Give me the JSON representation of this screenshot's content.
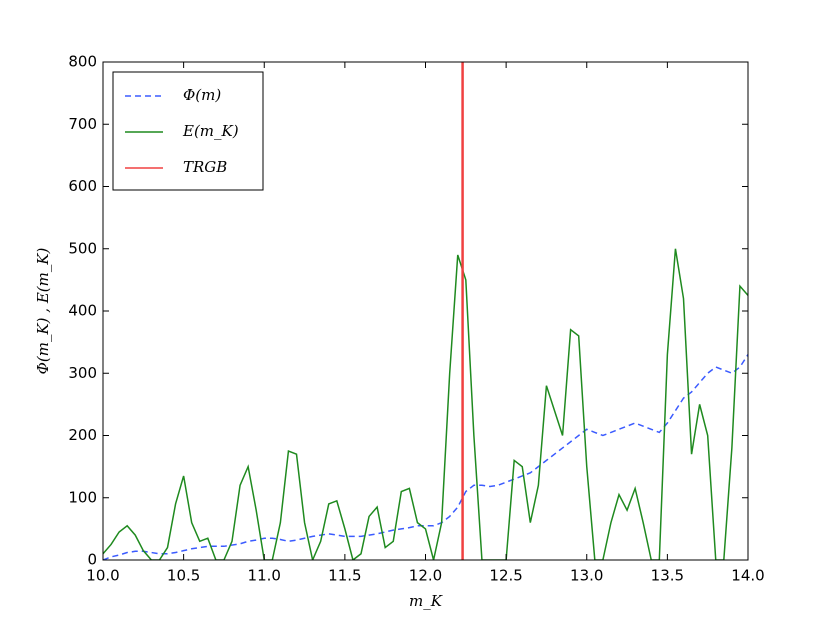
{
  "chart_data": {
    "type": "line",
    "x": [
      10.0,
      10.05,
      10.1,
      10.15,
      10.2,
      10.25,
      10.3,
      10.35,
      10.4,
      10.45,
      10.5,
      10.55,
      10.6,
      10.65,
      10.7,
      10.75,
      10.8,
      10.85,
      10.9,
      10.95,
      11.0,
      11.05,
      11.1,
      11.15,
      11.2,
      11.25,
      11.3,
      11.35,
      11.4,
      11.45,
      11.5,
      11.55,
      11.6,
      11.65,
      11.7,
      11.75,
      11.8,
      11.85,
      11.9,
      11.95,
      12.0,
      12.05,
      12.1,
      12.15,
      12.2,
      12.25,
      12.3,
      12.35,
      12.4,
      12.45,
      12.5,
      12.55,
      12.6,
      12.65,
      12.7,
      12.75,
      12.8,
      12.85,
      12.9,
      12.95,
      13.0,
      13.05,
      13.1,
      13.15,
      13.2,
      13.25,
      13.3,
      13.35,
      13.4,
      13.45,
      13.5,
      13.55,
      13.6,
      13.65,
      13.7,
      13.75,
      13.8,
      13.85,
      13.9,
      13.95,
      14.0
    ],
    "series": [
      {
        "name": "Φ(m)",
        "color": "#3b5bff",
        "dash": true,
        "values": [
          0,
          5,
          8,
          12,
          14,
          14,
          12,
          10,
          10,
          12,
          15,
          18,
          20,
          22,
          22,
          22,
          24,
          26,
          30,
          32,
          35,
          35,
          33,
          30,
          32,
          35,
          38,
          40,
          42,
          40,
          38,
          38,
          38,
          40,
          42,
          45,
          48,
          50,
          52,
          55,
          55,
          55,
          60,
          70,
          85,
          110,
          120,
          120,
          118,
          120,
          125,
          130,
          135,
          140,
          150,
          160,
          170,
          180,
          190,
          200,
          210,
          205,
          200,
          205,
          210,
          215,
          220,
          215,
          210,
          205,
          220,
          240,
          260,
          270,
          285,
          300,
          310,
          305,
          300,
          310,
          330
        ]
      },
      {
        "name": "E(m_K)",
        "color": "#1f8a1f",
        "dash": false,
        "values": [
          10,
          25,
          45,
          55,
          40,
          15,
          0,
          0,
          20,
          90,
          135,
          60,
          30,
          35,
          0,
          0,
          30,
          120,
          150,
          80,
          0,
          0,
          60,
          175,
          170,
          60,
          0,
          30,
          90,
          95,
          50,
          0,
          10,
          70,
          85,
          20,
          30,
          110,
          115,
          60,
          50,
          0,
          60,
          300,
          490,
          450,
          200,
          0,
          0,
          0,
          0,
          160,
          150,
          60,
          120,
          280,
          240,
          200,
          370,
          360,
          150,
          0,
          0,
          60,
          105,
          80,
          115,
          60,
          0,
          0,
          330,
          500,
          420,
          170,
          250,
          200,
          0,
          0,
          180,
          440,
          425
        ]
      }
    ],
    "vline": {
      "name": "TRGB",
      "value": 12.23,
      "color": "#f04040"
    },
    "x_label": "m_K",
    "y_label": "Φ(m_K) , E(m_K)",
    "xlim": [
      10,
      14
    ],
    "ylim": [
      0,
      800
    ],
    "xticks": [
      {
        "value": 10,
        "label": "10.0"
      },
      {
        "value": 10.5,
        "label": "10.5"
      },
      {
        "value": 11,
        "label": "11.0"
      },
      {
        "value": 11.5,
        "label": "11.5"
      },
      {
        "value": 12,
        "label": "12.0"
      },
      {
        "value": 12.5,
        "label": "12.5"
      },
      {
        "value": 13,
        "label": "13.0"
      },
      {
        "value": 13.5,
        "label": "13.5"
      },
      {
        "value": 14,
        "label": "14.0"
      }
    ],
    "yticks": [
      0,
      100,
      200,
      300,
      400,
      500,
      600,
      700,
      800
    ],
    "legend": "upper-left"
  }
}
